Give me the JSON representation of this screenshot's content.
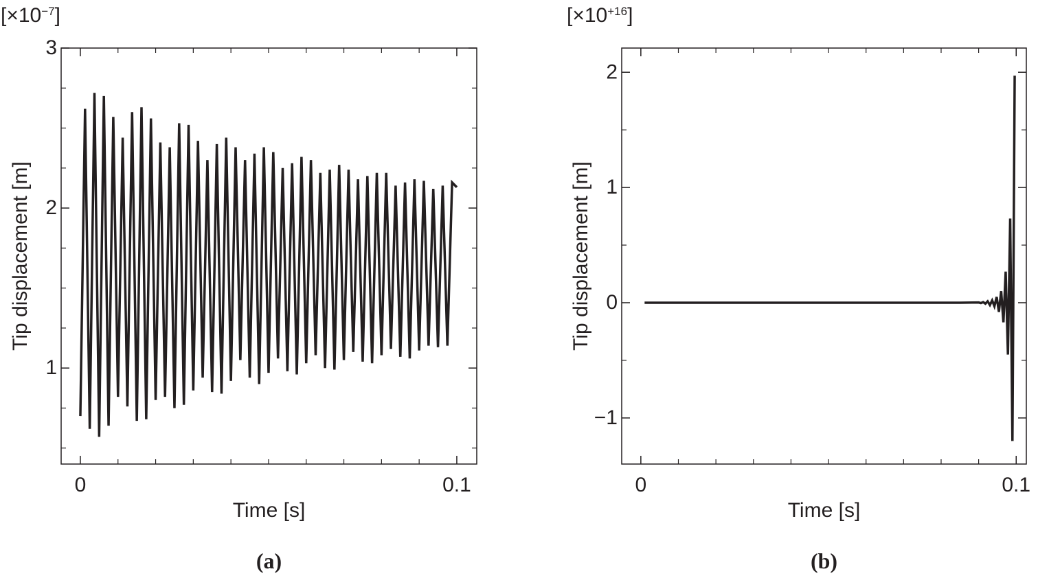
{
  "chart_data": [
    {
      "type": "line",
      "label": "(a)",
      "xlabel": "Time [s]",
      "ylabel": "Tip displacement [m]",
      "y_multiplier": {
        "prefix": "[×10",
        "exponent": "−7",
        "suffix": "]"
      },
      "xlim": [
        -0.0051,
        0.1053
      ],
      "ylim": [
        0.4,
        3
      ],
      "xticks": [
        0,
        0.1
      ],
      "yticks": [
        1,
        2,
        3
      ],
      "xminorticks": [
        0.01,
        0.02,
        0.03,
        0.04,
        0.05,
        0.06,
        0.07,
        0.08,
        0.09
      ],
      "yminorticks": [
        0.5,
        0.75,
        1.25,
        1.5,
        1.75,
        2.25,
        2.5,
        2.75
      ],
      "x": [
        0,
        0.00125,
        0.0025,
        0.00375,
        0.005,
        0.00625,
        0.0075,
        0.00875,
        0.01,
        0.01125,
        0.0125,
        0.01375,
        0.015,
        0.01625,
        0.0175,
        0.01875,
        0.02,
        0.02125,
        0.0225,
        0.02375,
        0.025,
        0.02625,
        0.0275,
        0.02875,
        0.03,
        0.03125,
        0.0325,
        0.03375,
        0.035,
        0.03625,
        0.0375,
        0.03875,
        0.04,
        0.04125,
        0.0425,
        0.04375,
        0.045,
        0.04625,
        0.0475,
        0.04875,
        0.05,
        0.05125,
        0.0525,
        0.05375,
        0.055,
        0.05625,
        0.0575,
        0.05875,
        0.06,
        0.06125,
        0.0625,
        0.06375,
        0.065,
        0.06625,
        0.0675,
        0.06875,
        0.07,
        0.07125,
        0.0725,
        0.07375,
        0.075,
        0.07625,
        0.0775,
        0.07875,
        0.08,
        0.08125,
        0.0825,
        0.08375,
        0.085,
        0.08625,
        0.0875,
        0.08875,
        0.09,
        0.09125,
        0.0925,
        0.09375,
        0.095,
        0.09625,
        0.0975,
        0.09875,
        0.1
      ],
      "series": [
        {
          "color": "#231f20",
          "values": [
            0.7,
            2.62,
            0.62,
            2.72,
            0.57,
            2.7,
            0.64,
            2.57,
            0.82,
            2.44,
            0.76,
            2.6,
            0.67,
            2.63,
            0.68,
            2.56,
            0.8,
            2.41,
            0.82,
            2.38,
            0.75,
            2.53,
            0.77,
            2.52,
            0.86,
            2.42,
            0.94,
            2.3,
            0.85,
            2.4,
            0.84,
            2.44,
            0.92,
            2.38,
            1.05,
            2.3,
            0.94,
            2.34,
            0.9,
            2.38,
            0.97,
            2.35,
            1.06,
            2.25,
            0.98,
            2.28,
            0.96,
            2.32,
            1.03,
            2.3,
            1.08,
            2.22,
            1.0,
            2.24,
            0.99,
            2.27,
            1.05,
            2.24,
            1.1,
            2.18,
            1.04,
            2.2,
            1.03,
            2.22,
            1.08,
            2.22,
            1.12,
            2.14,
            1.07,
            2.16,
            1.06,
            2.18,
            1.11,
            2.17,
            1.14,
            2.12,
            1.13,
            2.14,
            1.14,
            2.16,
            2.13
          ]
        }
      ]
    },
    {
      "type": "line",
      "label": "(b)",
      "xlabel": "Time [s]",
      "ylabel": "Tip displacement [m]",
      "y_multiplier": {
        "prefix": "[×10",
        "exponent": "+16",
        "suffix": "]"
      },
      "xlim": [
        -0.0051,
        0.1027
      ],
      "ylim": [
        -1.4,
        2.21
      ],
      "xticks": [
        0,
        0.1
      ],
      "yticks": [
        {
          "value": -1,
          "label": "−1"
        },
        0,
        1,
        2
      ],
      "xminorticks": [
        0.01,
        0.02,
        0.03,
        0.04,
        0.05,
        0.06,
        0.07,
        0.08,
        0.09
      ],
      "yminorticks": [
        -0.5,
        0.5,
        1.5
      ],
      "x": [
        0.001,
        0.06,
        0.085,
        0.09,
        0.0906,
        0.0912,
        0.0918,
        0.0924,
        0.093,
        0.0936,
        0.0942,
        0.0948,
        0.0954,
        0.096,
        0.0966,
        0.0972,
        0.0978,
        0.0984,
        0.099,
        0.0996
      ],
      "series": [
        {
          "color": "#231f20",
          "values": [
            0,
            0,
            0,
            0.002,
            -0.003,
            0.005,
            -0.008,
            0.012,
            -0.02,
            0.02,
            -0.03,
            0.05,
            -0.08,
            0.1,
            -0.17,
            0.27,
            -0.45,
            0.73,
            -1.2,
            1.97
          ]
        }
      ]
    }
  ]
}
